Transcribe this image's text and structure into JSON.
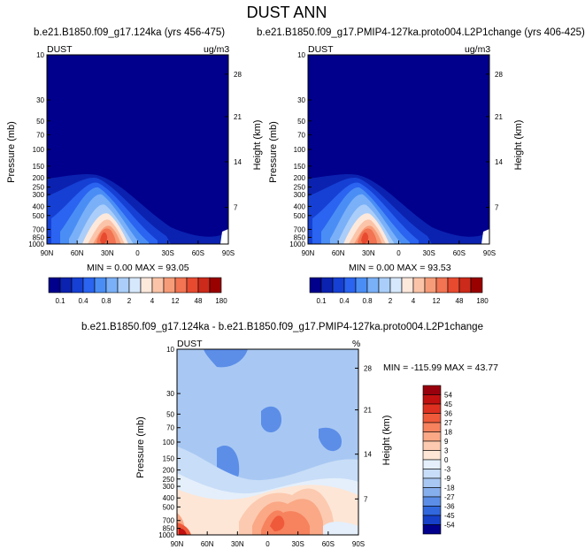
{
  "figure": {
    "title": "DUST ANN"
  },
  "panels": [
    {
      "title": "b.e21.B1850.f09_g17.124ka (yrs 456-475)",
      "var_label": "DUST",
      "units": "ug/m3",
      "ylabel_left": "Pressure (mb)",
      "ylabel_right": "Height (km)",
      "stats": "MIN =   0.00  MAX =  93.05"
    },
    {
      "title": "b.e21.B1850.f09_g17.PMIP4-127ka.proto004.L2P1change (yrs 406-425)",
      "var_label": "DUST",
      "units": "ug/m3",
      "ylabel_left": "Pressure (mb)",
      "ylabel_right": "Height (km)",
      "stats": "MIN =   0.00  MAX =  93.53"
    },
    {
      "title": "b.e21.B1850.f09_g17.124ka - b.e21.B1850.f09_g17.PMIP4-127ka.proto004.L2P1change",
      "var_label": "DUST",
      "units": "%",
      "ylabel_left": "Pressure (mb)",
      "ylabel_right": "Height (km)",
      "stats": "MIN = -115.99  MAX =  43.77"
    }
  ],
  "axes": {
    "x_ticks": [
      "90N",
      "60N",
      "30N",
      "0",
      "30S",
      "60S",
      "90S"
    ],
    "pressure_ticks": [
      "10",
      "30",
      "50",
      "70",
      "100",
      "150",
      "200",
      "250",
      "300",
      "400",
      "500",
      "700",
      "850",
      "1000"
    ],
    "height_ticks": [
      "28",
      "21",
      "14",
      "7"
    ]
  },
  "colorbars": {
    "abs_labels": [
      "0.1",
      "0.4",
      "0.8",
      "2",
      "4",
      "12",
      "48",
      "180"
    ],
    "abs_colors": [
      "#00008c",
      "#0b22b0",
      "#1640d4",
      "#2a64f0",
      "#4a8ef5",
      "#7ab0f7",
      "#aacef9",
      "#d6e8fb",
      "#fde8dc",
      "#fbc4a8",
      "#f79c78",
      "#f27452",
      "#e84a30",
      "#cc2a1a",
      "#990000"
    ],
    "diff_labels": [
      "54",
      "45",
      "36",
      "27",
      "18",
      "9",
      "3",
      "0",
      "-3",
      "-9",
      "-18",
      "-27",
      "-36",
      "-45",
      "-54"
    ],
    "diff_colors": [
      "#99000d",
      "#c01010",
      "#de3020",
      "#ef5a3a",
      "#f7825e",
      "#faa886",
      "#fccab0",
      "#fde6d6",
      "#e4effb",
      "#c8ddf7",
      "#a8c8f3",
      "#86afee",
      "#5c8ee8",
      "#3168de",
      "#1640c8",
      "#00008c"
    ]
  },
  "chart_data": [
    {
      "type": "heatmap",
      "title": "b.e21.B1850.f09_g17.124ka (yrs 456-475)",
      "variable": "DUST",
      "units": "ug/m3",
      "xlabel": "",
      "ylabel": "Pressure (mb)",
      "ylabel_right": "Height (km)",
      "x_categories": [
        "90N",
        "60N",
        "30N",
        "0",
        "30S",
        "60S",
        "90S"
      ],
      "y_log_scale": true,
      "ylim": [
        1000,
        10
      ],
      "min": 0.0,
      "max": 93.05,
      "contour_levels": [
        0.1,
        0.2,
        0.4,
        0.6,
        0.8,
        1,
        2,
        3,
        4,
        8,
        12,
        24,
        48,
        96,
        180
      ],
      "description_max_location": "near 30N, 700-850 mb"
    },
    {
      "type": "heatmap",
      "title": "b.e21.B1850.f09_g17.PMIP4-127ka.proto004.L2P1change (yrs 406-425)",
      "variable": "DUST",
      "units": "ug/m3",
      "xlabel": "",
      "ylabel": "Pressure (mb)",
      "ylabel_right": "Height (km)",
      "x_categories": [
        "90N",
        "60N",
        "30N",
        "0",
        "30S",
        "60S",
        "90S"
      ],
      "y_log_scale": true,
      "ylim": [
        1000,
        10
      ],
      "min": 0.0,
      "max": 93.53,
      "contour_levels": [
        0.1,
        0.2,
        0.4,
        0.6,
        0.8,
        1,
        2,
        3,
        4,
        8,
        12,
        24,
        48,
        96,
        180
      ]
    },
    {
      "type": "heatmap",
      "title": "b.e21.B1850.f09_g17.124ka - b.e21.B1850.f09_g17.PMIP4-127ka.proto004.L2P1change",
      "variable": "DUST",
      "units": "%",
      "xlabel": "",
      "ylabel": "Pressure (mb)",
      "ylabel_right": "Height (km)",
      "x_categories": [
        "90N",
        "60N",
        "30N",
        "0",
        "30S",
        "60S",
        "90S"
      ],
      "y_log_scale": true,
      "ylim": [
        1000,
        10
      ],
      "min": -115.99,
      "max": 43.77,
      "contour_levels": [
        -54,
        -45,
        -36,
        -27,
        -18,
        -9,
        -3,
        0,
        3,
        9,
        18,
        27,
        36,
        45,
        54
      ]
    }
  ]
}
